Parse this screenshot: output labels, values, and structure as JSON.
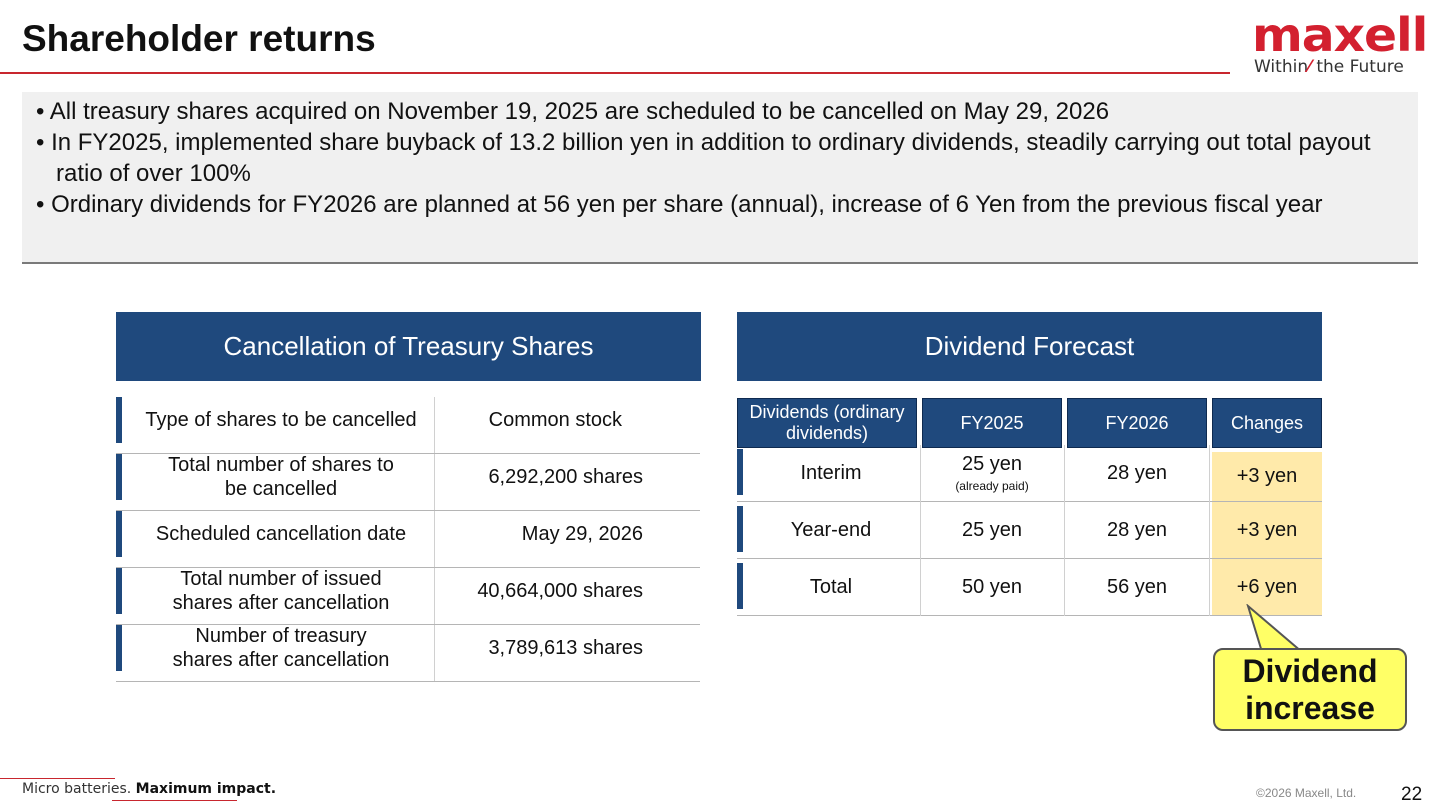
{
  "header": {
    "title": "Shareholder returns",
    "logo": {
      "wordmark": "maxell",
      "tagline_left": "Within",
      "tagline_right": "the Future",
      "brand_color": "#d3202f"
    }
  },
  "summary": {
    "bullets": [
      "All treasury shares acquired on November 19, 2025 are scheduled to be cancelled on May 29, 2026",
      "In FY2025, implemented share buyback of 13.2 billion yen in addition to ordinary dividends, steadily carrying out total payout ratio of over 100%",
      "Ordinary dividends for FY2026 are planned at 56 yen per share (annual), increase of 6 Yen from the previous fiscal year"
    ]
  },
  "cancellation": {
    "heading": "Cancellation of Treasury Shares",
    "rows": [
      {
        "label": "Type of shares to be cancelled",
        "value": "Common stock"
      },
      {
        "label": "Total number of shares to be cancelled",
        "value": "6,292,200 shares"
      },
      {
        "label": "Scheduled cancellation date",
        "value": "May 29, 2026"
      },
      {
        "label": "Total number of issued shares after cancellation",
        "value": "40,664,000 shares"
      },
      {
        "label": "Number of treasury shares after cancellation",
        "value": "3,789,613 shares"
      }
    ]
  },
  "dividend": {
    "heading": "Dividend Forecast",
    "columns": [
      "Dividends (ordinary dividends)",
      "FY2025",
      "FY2026",
      "Changes"
    ],
    "rows": [
      {
        "label": "Interim",
        "fy2025": "25 yen",
        "fy2025_note": "(already paid)",
        "fy2026": "28 yen",
        "change": "+3 yen"
      },
      {
        "label": "Year-end",
        "fy2025": "25 yen",
        "fy2025_note": "",
        "fy2026": "28 yen",
        "change": "+3 yen"
      },
      {
        "label": "Total",
        "fy2025": "50 yen",
        "fy2025_note": "",
        "fy2026": "56 yen",
        "change": "+6 yen"
      }
    ],
    "callout": {
      "line1": "Dividend",
      "line2": "increase"
    }
  },
  "footer": {
    "tagline_regular": "Micro batteries.",
    "tagline_bold": "Maximum impact.",
    "copyright": "©2026 Maxell, Ltd.",
    "page_number": "22"
  }
}
